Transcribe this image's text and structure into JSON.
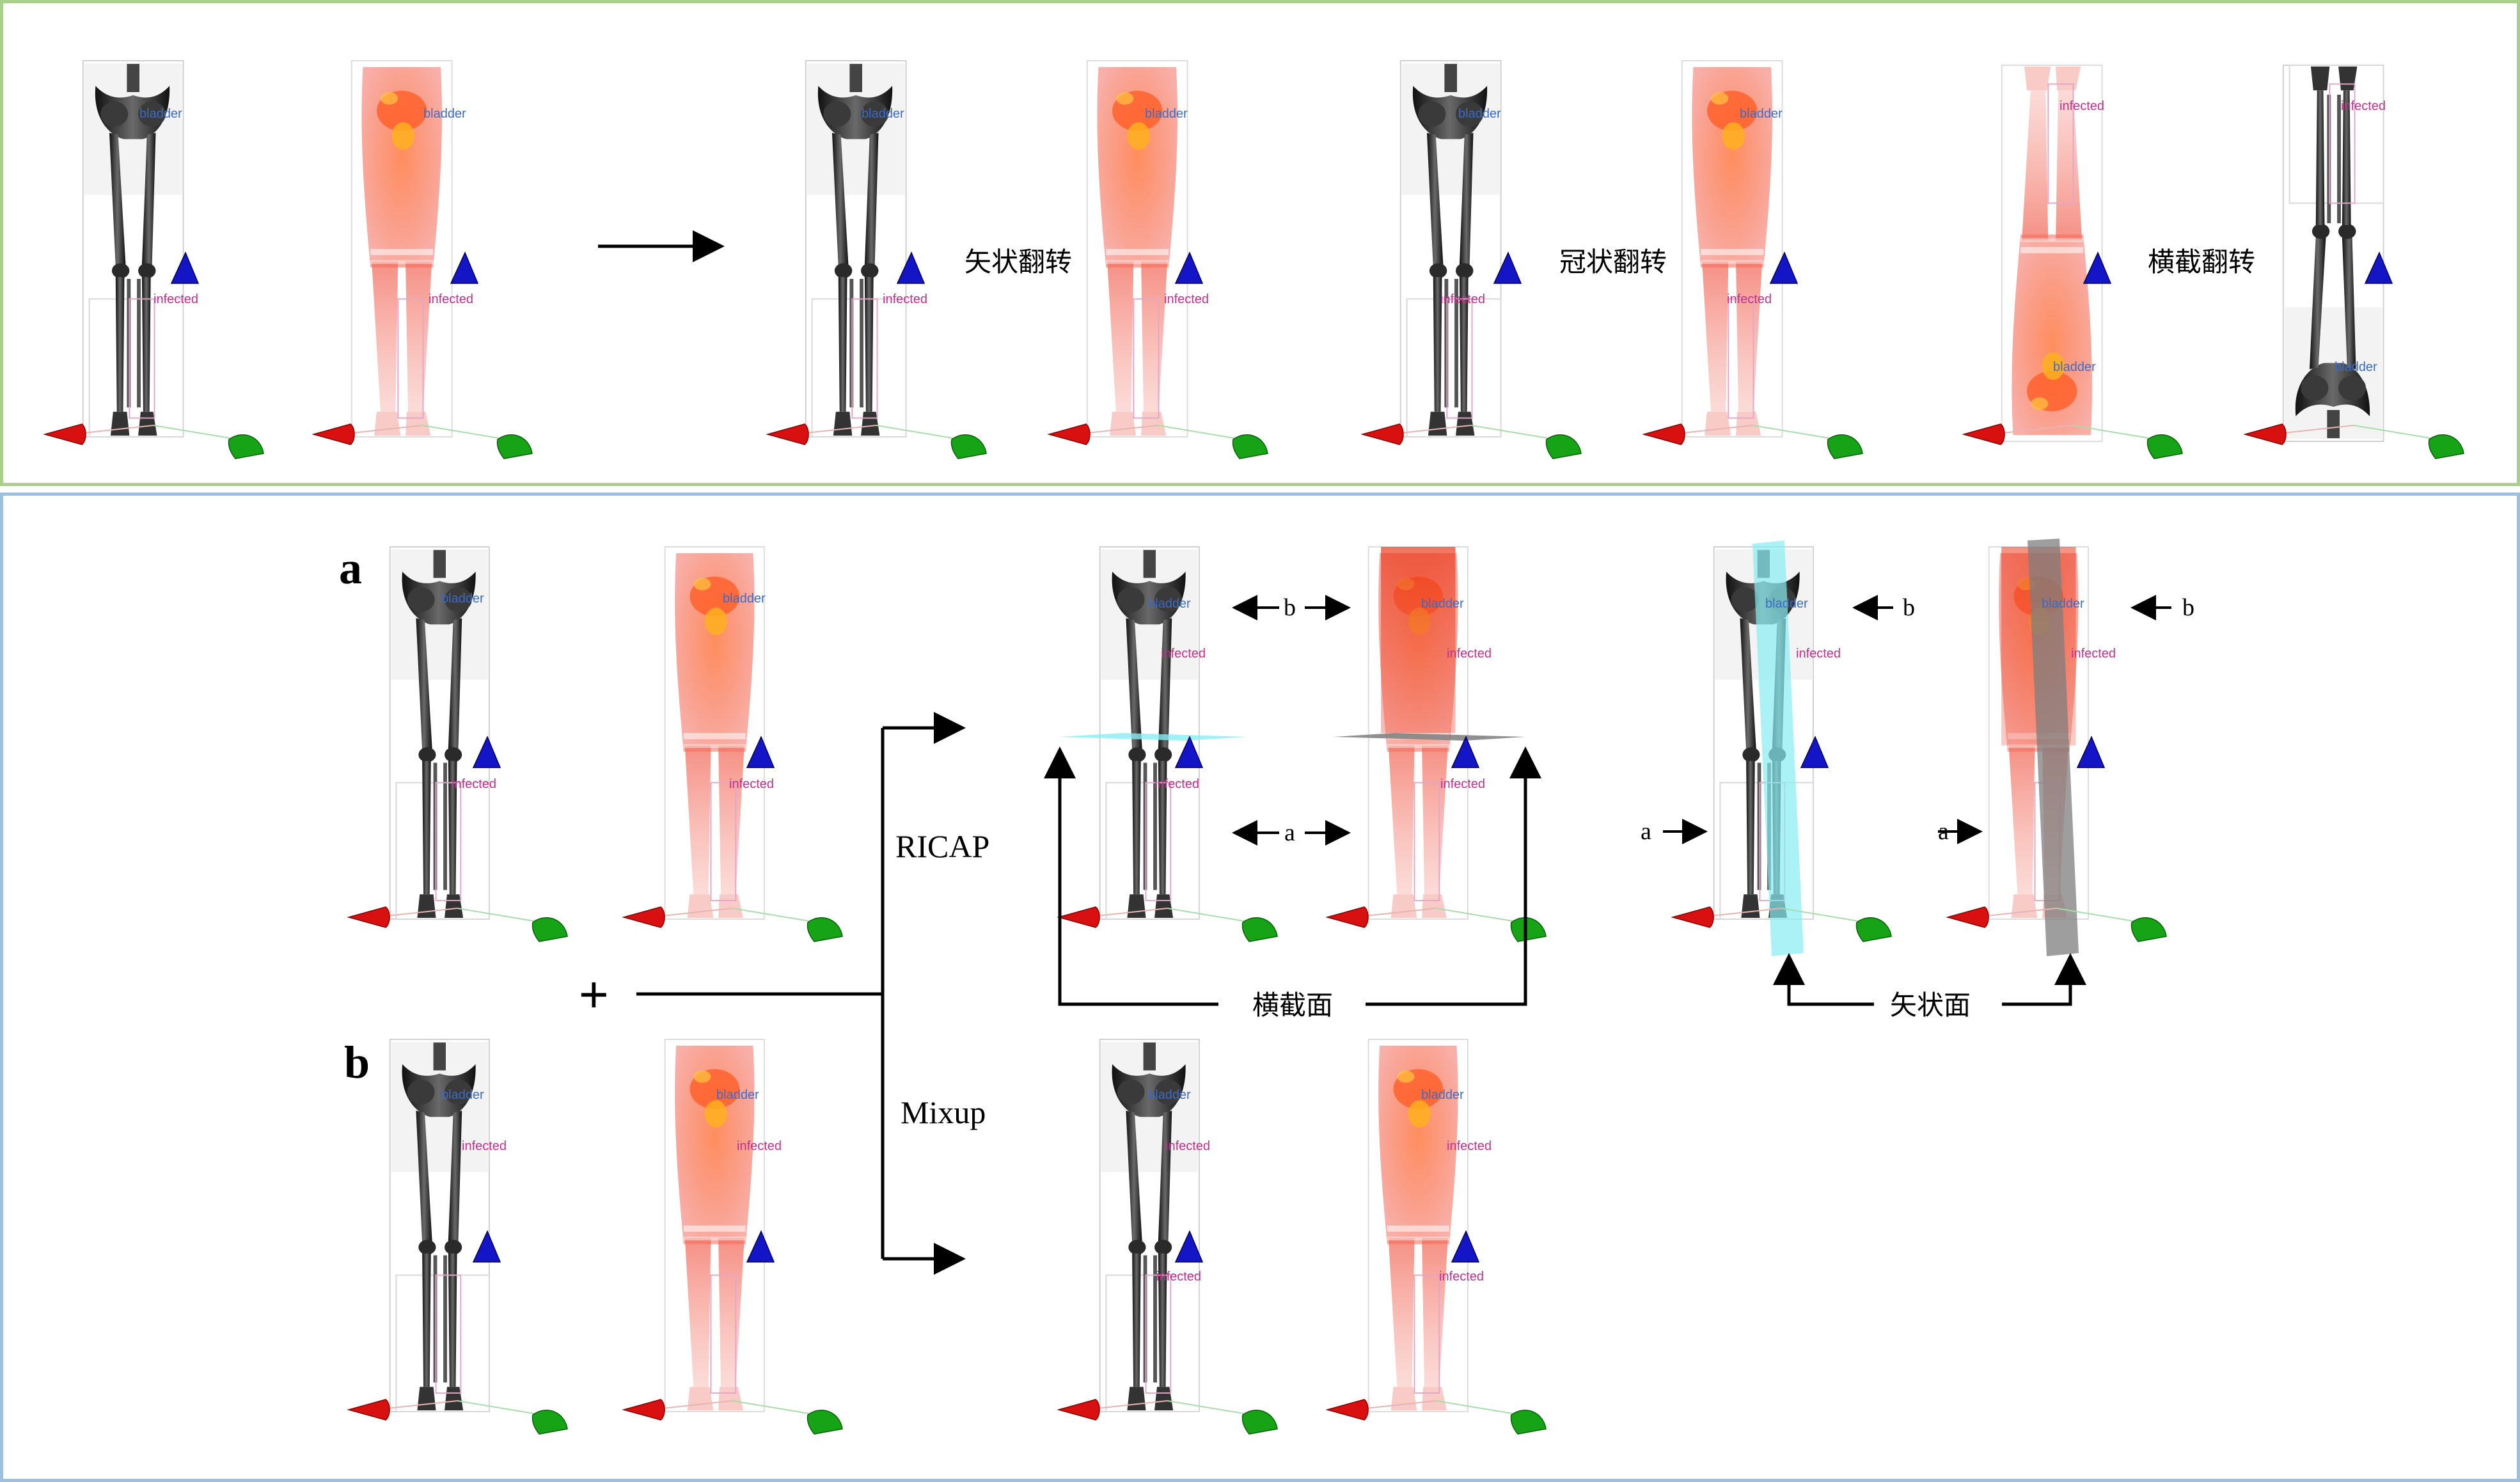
{
  "colors": {
    "top_border": "#a9cf8a",
    "bottom_border": "#9fbfdc",
    "bone": "#2b2b2b",
    "pet_red": "#e8432a",
    "pet_hot": "#ffb020",
    "axis_x": "#d81010",
    "axis_y": "#14a014",
    "axis_z": "#1515c8",
    "bladder_label": "#3a6bc8",
    "infected_label": "#c0308c",
    "cyan_plane": "#88ecf4",
    "gray_plane": "#7d7d7d"
  },
  "labels": {
    "bladder": "bladder",
    "infected": "infected"
  },
  "top": {
    "flip_sagittal": "矢状翻转",
    "flip_coronal": "冠状翻转",
    "flip_axial": "横截翻转"
  },
  "bottom": {
    "label_a": "a",
    "label_b": "b",
    "plus": "+",
    "ricap": "RICAP",
    "mixup": "Mixup",
    "axial_plane": "横截面",
    "sagittal_plane": "矢状面",
    "arrow_a": "a",
    "arrow_b": "b"
  }
}
